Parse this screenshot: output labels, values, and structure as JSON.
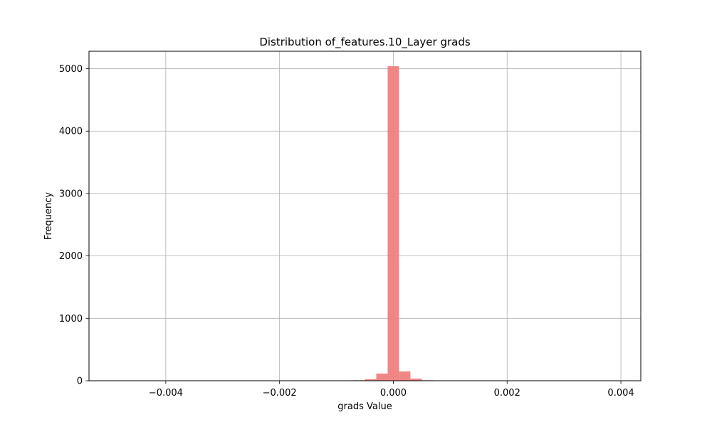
{
  "chart_data": {
    "type": "bar",
    "title": "Distribution of_features.10_Layer grads",
    "xlabel": "grads Value",
    "ylabel": "Frequency",
    "xlim": [
      -0.00535,
      0.00435
    ],
    "ylim": [
      0,
      5280
    ],
    "grid": true,
    "bar_color": "#f08080",
    "bar_opacity": 0.95,
    "bin_width": 0.0002,
    "x_ticks": [
      {
        "value": -0.004,
        "label": "−0.004"
      },
      {
        "value": -0.002,
        "label": "−0.002"
      },
      {
        "value": 0.0,
        "label": "0.000"
      },
      {
        "value": 0.002,
        "label": "0.002"
      },
      {
        "value": 0.004,
        "label": "0.004"
      }
    ],
    "y_ticks": [
      {
        "value": 0,
        "label": "0"
      },
      {
        "value": 1000,
        "label": "1000"
      },
      {
        "value": 2000,
        "label": "2000"
      },
      {
        "value": 3000,
        "label": "3000"
      },
      {
        "value": 4000,
        "label": "4000"
      },
      {
        "value": 5000,
        "label": "5000"
      }
    ],
    "bins": [
      {
        "start": -0.0007,
        "end": -0.0005,
        "count": 8
      },
      {
        "start": -0.0005,
        "end": -0.0003,
        "count": 25
      },
      {
        "start": -0.0003,
        "end": -0.0001,
        "count": 115
      },
      {
        "start": -0.0001,
        "end": 0.0001,
        "count": 5040
      },
      {
        "start": 0.0001,
        "end": 0.0003,
        "count": 150
      },
      {
        "start": 0.0003,
        "end": 0.0005,
        "count": 35
      },
      {
        "start": 0.0005,
        "end": 0.0007,
        "count": 8
      }
    ]
  }
}
